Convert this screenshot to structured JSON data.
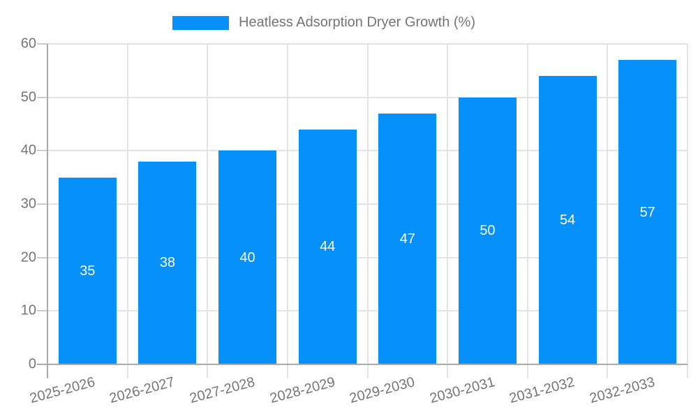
{
  "chart_data": {
    "type": "bar",
    "title": "Heatless Adsorption Dryer Growth (%)",
    "categories": [
      "2025-2026",
      "2026-2027",
      "2027-2028",
      "2028-2029",
      "2029-2030",
      "2030-2031",
      "2031-2032",
      "2032-2033"
    ],
    "values": [
      35,
      38,
      40,
      44,
      47,
      50,
      54,
      57
    ],
    "xlabel": "",
    "ylabel": "",
    "ylim": [
      0,
      60
    ],
    "yticks": [
      0,
      10,
      20,
      30,
      40,
      50,
      60
    ],
    "grid": true,
    "legend_position": "top-center",
    "bar_color": "#0590fa",
    "bar_label_color": "#ffffff",
    "grid_color": "#e3e3e3",
    "tick_color": "#cccccc",
    "axis_color": "#aaaaaa",
    "tick_label_color": "#757575",
    "background_color": "#ffffff"
  }
}
